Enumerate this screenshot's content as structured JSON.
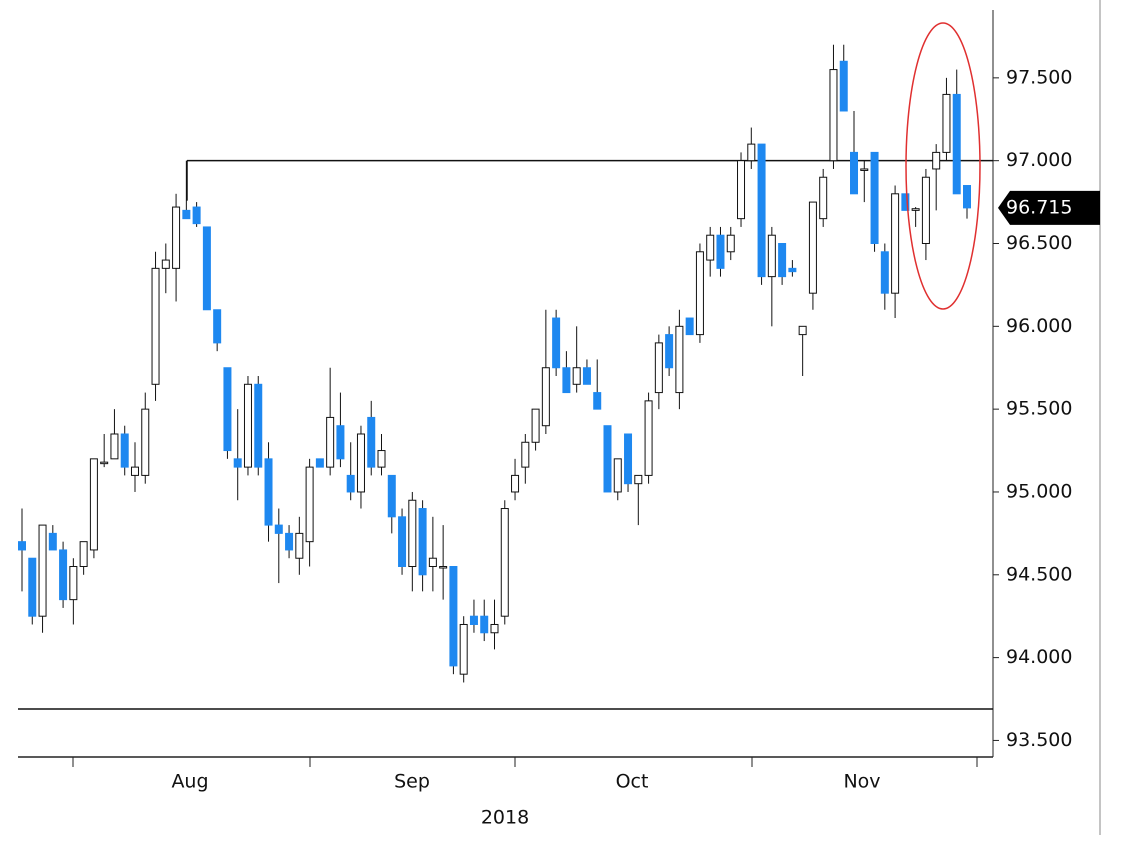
{
  "chart_data": {
    "type": "candlestick",
    "up_color": "#ffffff",
    "down_color": "#1e88f0",
    "ylim": [
      93.4,
      97.97
    ],
    "yticks": [
      {
        "value": 93.5,
        "label": "93.500"
      },
      {
        "value": 94,
        "label": "94.000"
      },
      {
        "value": 94.5,
        "label": "94.500"
      },
      {
        "value": 95,
        "label": "95.000"
      },
      {
        "value": 95.5,
        "label": "95.500"
      },
      {
        "value": 96,
        "label": "96.000"
      },
      {
        "value": 96.5,
        "label": "96.500"
      },
      {
        "value": 97,
        "label": "97.000"
      },
      {
        "value": 97.5,
        "label": "97.500"
      }
    ],
    "x_labels": [
      "Aug",
      "Sep",
      "Oct",
      "Nov"
    ],
    "year_label": "2018",
    "last_price": 96.715,
    "hlines": [
      97.0,
      93.69
    ],
    "open": [
      94.7,
      94.6,
      94.25,
      94.75,
      94.65,
      94.35,
      94.55,
      94.65,
      95.18,
      95.2,
      95.35,
      95.1,
      95.1,
      95.65,
      96.35,
      96.35,
      96.7,
      96.72,
      96.6,
      96.1,
      95.75,
      95.2,
      95.15,
      95.65,
      95.2,
      94.8,
      94.75,
      94.6,
      94.7,
      95.2,
      95.15,
      95.4,
      95.1,
      95.0,
      95.45,
      95.15,
      95.1,
      94.85,
      94.55,
      94.9,
      94.55,
      94.55,
      94.55,
      93.9,
      94.25,
      94.25,
      94.15,
      94.25,
      95.0,
      95.15,
      95.3,
      95.4,
      96.05,
      95.75,
      95.65,
      95.75,
      95.6,
      95.4,
      95.0,
      95.35,
      95.05,
      95.1,
      95.6,
      95.95,
      95.6,
      96.05,
      95.95,
      96.4,
      96.55,
      96.45,
      96.65,
      97.0,
      97.1,
      96.3,
      96.5,
      96.35,
      95.95,
      96.2,
      96.65,
      97.0,
      97.6,
      97.05,
      96.95,
      97.05,
      96.45,
      96.2,
      96.8,
      96.7,
      96.5,
      96.95,
      97.05,
      97.4,
      96.85
    ],
    "high": [
      94.9,
      94.6,
      94.8,
      94.8,
      94.7,
      94.6,
      94.7,
      95.2,
      95.35,
      95.5,
      95.4,
      95.3,
      95.6,
      96.45,
      96.5,
      96.8,
      97.0,
      96.75,
      96.6,
      96.1,
      95.75,
      95.5,
      95.7,
      95.7,
      95.3,
      94.9,
      94.8,
      94.85,
      95.2,
      95.2,
      95.75,
      95.6,
      95.3,
      95.4,
      95.55,
      95.35,
      95.1,
      94.9,
      95.0,
      94.95,
      94.85,
      94.8,
      94.55,
      94.25,
      94.35,
      94.35,
      94.35,
      94.95,
      95.2,
      95.35,
      95.5,
      96.1,
      96.1,
      95.85,
      96.0,
      95.8,
      95.8,
      95.4,
      95.2,
      95.35,
      95.1,
      95.6,
      95.95,
      96.0,
      96.1,
      96.05,
      96.5,
      96.6,
      96.6,
      96.6,
      97.05,
      97.2,
      97.1,
      96.6,
      96.5,
      96.4,
      96.0,
      96.75,
      96.95,
      97.7,
      97.7,
      97.3,
      97.0,
      97.05,
      96.5,
      96.85,
      96.8,
      96.72,
      96.95,
      97.1,
      97.5,
      97.55,
      96.85
    ],
    "low": [
      94.4,
      94.2,
      94.15,
      94.65,
      94.3,
      94.2,
      94.5,
      94.6,
      95.15,
      95.2,
      95.1,
      95.0,
      95.05,
      95.55,
      96.2,
      96.15,
      96.65,
      96.6,
      96.1,
      95.85,
      95.2,
      94.95,
      95.1,
      95.1,
      94.7,
      94.45,
      94.6,
      94.5,
      94.55,
      95.15,
      95.1,
      95.15,
      94.95,
      94.9,
      95.1,
      95.1,
      94.75,
      94.5,
      94.4,
      94.4,
      94.4,
      94.35,
      93.9,
      93.85,
      94.15,
      94.1,
      94.05,
      94.2,
      94.95,
      95.05,
      95.25,
      95.35,
      95.7,
      95.6,
      95.6,
      95.65,
      95.5,
      95.0,
      94.95,
      95.0,
      94.8,
      95.05,
      95.5,
      95.7,
      95.5,
      95.95,
      95.9,
      96.3,
      96.3,
      96.4,
      96.6,
      96.95,
      96.25,
      96.0,
      96.25,
      96.3,
      95.7,
      96.1,
      96.6,
      96.95,
      97.3,
      96.8,
      96.75,
      96.45,
      96.1,
      96.05,
      96.7,
      96.6,
      96.4,
      96.7,
      97.0,
      96.8,
      96.65
    ],
    "close": [
      94.65,
      94.25,
      94.8,
      94.65,
      94.35,
      94.55,
      94.7,
      95.2,
      95.18,
      95.35,
      95.15,
      95.15,
      95.5,
      96.35,
      96.4,
      96.72,
      96.65,
      96.62,
      96.1,
      95.9,
      95.25,
      95.15,
      95.65,
      95.15,
      94.8,
      94.75,
      94.65,
      94.75,
      95.15,
      95.15,
      95.45,
      95.2,
      95.0,
      95.35,
      95.15,
      95.25,
      94.85,
      94.55,
      94.95,
      94.5,
      94.6,
      94.55,
      93.95,
      94.2,
      94.2,
      94.15,
      94.2,
      94.9,
      95.1,
      95.3,
      95.5,
      95.75,
      95.75,
      95.6,
      95.75,
      95.65,
      95.5,
      95.0,
      95.2,
      95.05,
      95.1,
      95.55,
      95.9,
      95.75,
      96.0,
      95.95,
      96.45,
      96.55,
      96.35,
      96.55,
      97.0,
      97.1,
      96.3,
      96.55,
      96.3,
      96.33,
      96.0,
      96.75,
      96.9,
      97.55,
      97.3,
      96.8,
      96.95,
      96.5,
      96.2,
      96.8,
      96.7,
      96.71,
      96.9,
      97.05,
      97.4,
      96.8,
      96.715
    ]
  }
}
